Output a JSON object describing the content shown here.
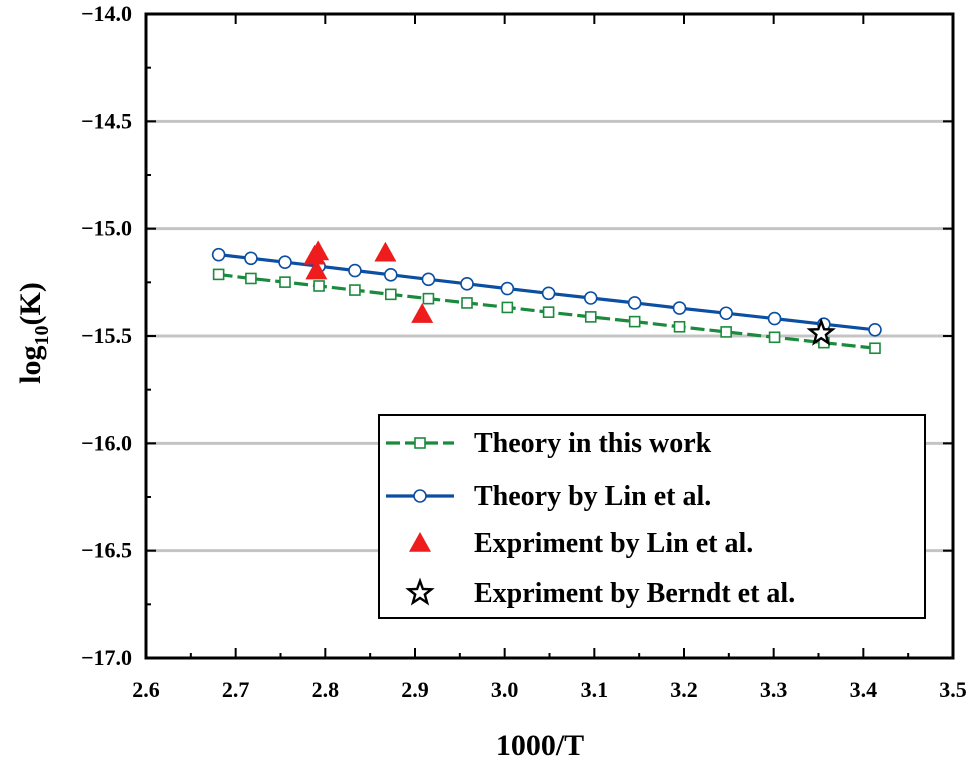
{
  "chart_data": {
    "type": "scatter",
    "xlabel": "1000/T",
    "ylabel_main": "log",
    "ylabel_sub": "10",
    "ylabel_tail": "(K)",
    "xlim": [
      2.6,
      3.5
    ],
    "ylim": [
      -17.0,
      -14.0
    ],
    "x_ticks": [
      2.6,
      2.7,
      2.8,
      2.9,
      3.0,
      3.1,
      3.2,
      3.3,
      3.4,
      3.5
    ],
    "x_tick_labels": [
      "2.6",
      "2.7",
      "2.8",
      "2.9",
      "3.0",
      "3.1",
      "3.2",
      "3.3",
      "3.4",
      "3.5"
    ],
    "y_ticks": [
      -17.0,
      -16.5,
      -16.0,
      -15.5,
      -15.0,
      -14.5,
      -14.0
    ],
    "y_tick_labels": [
      "−17.0",
      "−16.5",
      "−16.0",
      "−15.5",
      "−15.0",
      "−14.5",
      "−14.0"
    ],
    "grid": "horizontal",
    "legend_position": "bottom-right",
    "series": [
      {
        "name": "Theory in this work",
        "kind": "line",
        "marker": "open-square",
        "color": "#1a8a3c",
        "dashed": true,
        "x": [
          2.681,
          2.717,
          2.755,
          2.793,
          2.833,
          2.873,
          2.915,
          2.958,
          3.003,
          3.049,
          3.096,
          3.145,
          3.195,
          3.247,
          3.301,
          3.356,
          3.413
        ],
        "y": [
          -15.213,
          -15.232,
          -15.249,
          -15.267,
          -15.286,
          -15.306,
          -15.326,
          -15.346,
          -15.367,
          -15.389,
          -15.411,
          -15.433,
          -15.457,
          -15.481,
          -15.506,
          -15.531,
          -15.557
        ]
      },
      {
        "name": "Theory by Lin et al.",
        "kind": "line",
        "marker": "open-circle",
        "color": "#0b4ea2",
        "dashed": false,
        "x": [
          2.681,
          2.717,
          2.755,
          2.793,
          2.833,
          2.873,
          2.915,
          2.958,
          3.003,
          3.049,
          3.096,
          3.145,
          3.195,
          3.247,
          3.301,
          3.356,
          3.413
        ],
        "y": [
          -15.121,
          -15.138,
          -15.156,
          -15.175,
          -15.195,
          -15.215,
          -15.236,
          -15.257,
          -15.279,
          -15.301,
          -15.323,
          -15.346,
          -15.37,
          -15.394,
          -15.419,
          -15.445,
          -15.471
        ]
      },
      {
        "name": "Expriment by Lin et al.",
        "kind": "scatter",
        "marker": "filled-triangle",
        "color": "#ee1c1c",
        "x": [
          2.788,
          2.792,
          2.79,
          2.867,
          2.908
        ],
        "y": [
          -15.126,
          -15.106,
          -15.195,
          -15.112,
          -15.398
        ]
      },
      {
        "name": "Expriment by Berndt et al.",
        "kind": "scatter",
        "marker": "open-star",
        "color": "#000000",
        "x": [
          3.353
        ],
        "y": [
          -15.487
        ]
      }
    ]
  }
}
